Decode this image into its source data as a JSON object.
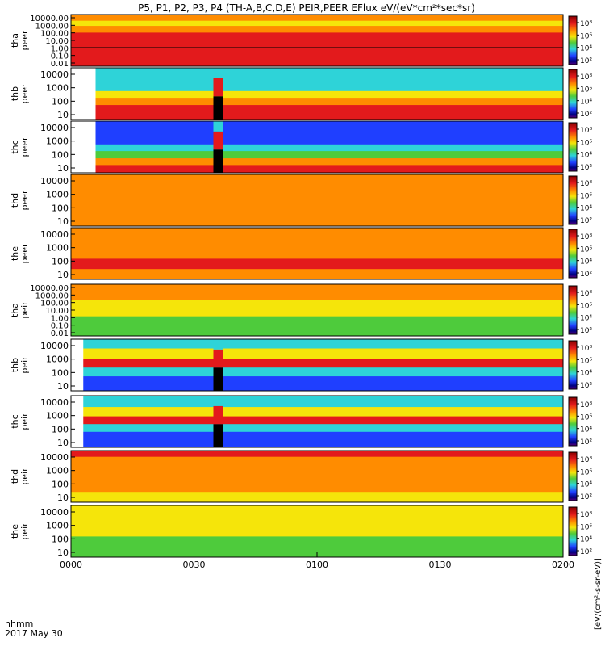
{
  "chart_data": {
    "type": "heatmap",
    "title": "P5, P1, P2, P3, P4 (TH-A,B,C,D,E) PEIR,PEER EFlux eV/(eV*cm²*sec*sr)",
    "xlabel_line1": "hhmm",
    "xlabel_line2": "2017 May 30",
    "x_ticks": [
      "0000",
      "0030",
      "0100",
      "0130",
      "0200"
    ],
    "colorbar_unit": "[eV/(cm²-s-sr-eV)]",
    "colorbar_ticks": [
      "10⁸",
      "10⁶",
      "10⁴",
      "10²"
    ],
    "colors": {
      "dark_red": "#8b0000",
      "red": "#e31a1c",
      "orange": "#ff8c00",
      "yellow": "#f5e50a",
      "green": "#4ecb3c",
      "cyan": "#2ed3d8",
      "blue": "#1f3fff",
      "navy": "#000080",
      "purple": "#5a007a",
      "black": "#000000"
    },
    "panels": [
      {
        "id": "tha_peer",
        "probe": "tha",
        "species": "peer",
        "y_ticks": [
          "10000.00",
          "1000.00",
          "100.00",
          "10.00",
          "1.00",
          "0.10",
          "0.01"
        ]
      },
      {
        "id": "thb_peer",
        "probe": "thb",
        "species": "peer",
        "y_ticks": [
          "10000",
          "1000",
          "100",
          "10"
        ]
      },
      {
        "id": "thc_peer",
        "probe": "thc",
        "species": "peer",
        "y_ticks": [
          "10000",
          "1000",
          "100",
          "10"
        ]
      },
      {
        "id": "thd_peer",
        "probe": "thd",
        "species": "peer",
        "y_ticks": [
          "10000",
          "1000",
          "100",
          "10"
        ]
      },
      {
        "id": "the_peer",
        "probe": "the",
        "species": "peer",
        "y_ticks": [
          "10000",
          "1000",
          "100",
          "10"
        ]
      },
      {
        "id": "tha_peir",
        "probe": "tha",
        "species": "peir",
        "y_ticks": [
          "10000.00",
          "1000.00",
          "100.00",
          "10.00",
          "1.00",
          "0.10",
          "0.01"
        ]
      },
      {
        "id": "thb_peir",
        "probe": "thb",
        "species": "peir",
        "y_ticks": [
          "10000",
          "1000",
          "100",
          "10"
        ]
      },
      {
        "id": "thc_peir",
        "probe": "thc",
        "species": "peir",
        "y_ticks": [
          "10000",
          "1000",
          "100",
          "10"
        ]
      },
      {
        "id": "thd_peir",
        "probe": "thd",
        "species": "peir",
        "y_ticks": [
          "10000",
          "1000",
          "100",
          "10"
        ]
      },
      {
        "id": "the_peir",
        "probe": "the",
        "species": "peir",
        "y_ticks": [
          "10000",
          "1000",
          "100",
          "10"
        ]
      }
    ]
  }
}
